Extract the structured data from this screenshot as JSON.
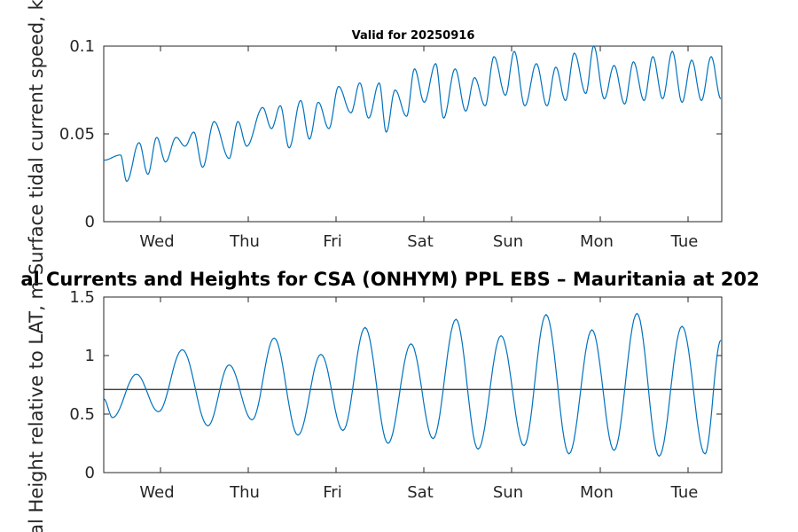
{
  "chart_data": [
    {
      "type": "line",
      "title": "Valid for 20250916",
      "ylabel": "Surface tidal current speed, kn",
      "xticklabels": [
        "Wed",
        "Thu",
        "Fri",
        "Sat",
        "Sun",
        "Mon",
        "Tue"
      ],
      "xlim": [
        0,
        7
      ],
      "ylim": [
        0,
        0.1
      ],
      "yticks": [
        0,
        0.05,
        0.1
      ],
      "yticklabels": [
        "0",
        "0.05",
        "0.1"
      ],
      "grid": false,
      "series": [
        {
          "color": "#0072BD",
          "x": [
            0.0,
            0.19,
            0.26,
            0.4,
            0.5,
            0.6,
            0.7,
            0.82,
            0.92,
            1.02,
            1.12,
            1.25,
            1.42,
            1.52,
            1.62,
            1.8,
            1.9,
            2.0,
            2.1,
            2.23,
            2.33,
            2.43,
            2.55,
            2.66,
            2.8,
            2.9,
            3.0,
            3.12,
            3.2,
            3.3,
            3.43,
            3.52,
            3.63,
            3.76,
            3.85,
            3.98,
            4.1,
            4.2,
            4.32,
            4.42,
            4.55,
            4.65,
            4.77,
            4.9,
            5.02,
            5.12,
            5.23,
            5.33,
            5.46,
            5.55,
            5.67,
            5.78,
            5.9,
            6.0,
            6.12,
            6.22,
            6.33,
            6.44,
            6.55,
            6.66,
            6.77,
            6.88,
            6.99
          ],
          "y": [
            0.035,
            0.038,
            0.023,
            0.045,
            0.027,
            0.048,
            0.034,
            0.048,
            0.043,
            0.051,
            0.031,
            0.057,
            0.036,
            0.057,
            0.043,
            0.065,
            0.053,
            0.066,
            0.042,
            0.069,
            0.047,
            0.068,
            0.053,
            0.077,
            0.062,
            0.079,
            0.059,
            0.079,
            0.051,
            0.075,
            0.06,
            0.087,
            0.068,
            0.09,
            0.059,
            0.087,
            0.063,
            0.082,
            0.066,
            0.094,
            0.072,
            0.097,
            0.066,
            0.09,
            0.066,
            0.088,
            0.069,
            0.096,
            0.073,
            0.1,
            0.07,
            0.089,
            0.067,
            0.091,
            0.069,
            0.094,
            0.07,
            0.097,
            0.068,
            0.092,
            0.069,
            0.094,
            0.07
          ]
        }
      ]
    },
    {
      "type": "line",
      "title": "al Currents and Heights for CSA (ONHYM) PPL EBS  – Mauritania at 202",
      "ylabel": "idal Height relative to LAT, m",
      "xticklabels": [
        "Wed",
        "Thu",
        "Fri",
        "Sat",
        "Sun",
        "Mon",
        "Tue"
      ],
      "xlim": [
        0,
        7
      ],
      "ylim": [
        0,
        1.5
      ],
      "yticks": [
        0,
        0.5,
        1,
        1.5
      ],
      "yticklabels": [
        "0",
        "0.5",
        "1",
        "1.5"
      ],
      "grid": false,
      "reference_line": 0.71,
      "series": [
        {
          "color": "#0072BD",
          "x": [
            0.0,
            0.1,
            0.37,
            0.62,
            0.89,
            1.18,
            1.42,
            1.68,
            1.93,
            2.2,
            2.46,
            2.71,
            2.96,
            3.22,
            3.48,
            3.73,
            3.99,
            4.24,
            4.5,
            4.76,
            5.01,
            5.27,
            5.53,
            5.78,
            6.04,
            6.29,
            6.55,
            6.81,
            6.99
          ],
          "y": [
            0.63,
            0.47,
            0.84,
            0.52,
            1.05,
            0.4,
            0.92,
            0.45,
            1.15,
            0.32,
            1.01,
            0.36,
            1.24,
            0.25,
            1.1,
            0.29,
            1.31,
            0.2,
            1.17,
            0.23,
            1.35,
            0.16,
            1.22,
            0.19,
            1.36,
            0.14,
            1.25,
            0.16,
            1.13
          ]
        }
      ]
    }
  ]
}
